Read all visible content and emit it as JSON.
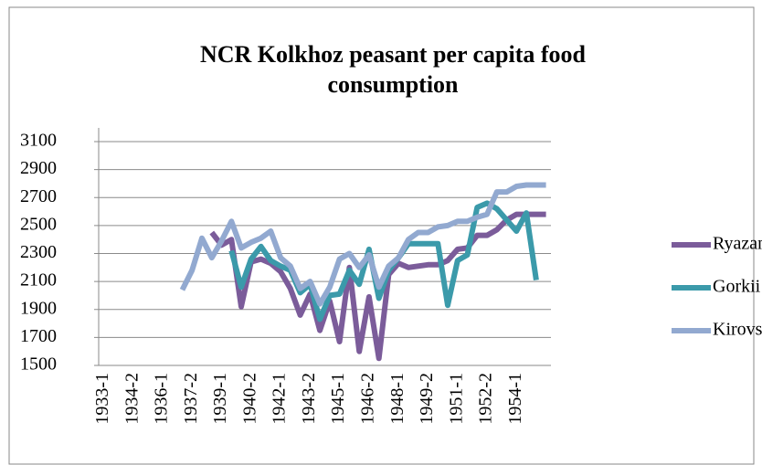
{
  "chart_data": {
    "type": "line",
    "title": "NCR Kolkhoz peasant per capita food consumption",
    "categories": [
      "1933-1",
      null,
      null,
      "1934-2",
      null,
      null,
      "1936-1",
      null,
      null,
      "1937-2",
      null,
      null,
      "1939-1",
      null,
      null,
      "1940-2",
      null,
      null,
      "1942-1",
      null,
      null,
      "1943-2",
      null,
      null,
      "1945-1",
      null,
      null,
      "1946-2",
      null,
      null,
      "1948-1",
      null,
      null,
      "1949-2",
      null,
      null,
      "1951-1",
      null,
      null,
      "1952-2",
      null,
      null,
      "1954-1",
      null,
      null,
      null
    ],
    "series": [
      {
        "name": "Ryazan Ob",
        "color": "#7b5c9a",
        "values": [
          null,
          null,
          null,
          null,
          null,
          null,
          null,
          null,
          null,
          null,
          null,
          2450,
          2360,
          2400,
          1920,
          2240,
          2260,
          2230,
          2170,
          2050,
          1860,
          2010,
          1750,
          1960,
          1670,
          2200,
          1600,
          1990,
          1550,
          2150,
          2230,
          2200,
          2210,
          2220,
          2220,
          2250,
          2330,
          2340,
          2430,
          2430,
          2470,
          2540,
          2580,
          2580,
          2580,
          2580
        ]
      },
      {
        "name": "Gorkii Ob",
        "color": "#3b9aaa",
        "values": [
          null,
          null,
          null,
          null,
          null,
          null,
          null,
          null,
          null,
          null,
          null,
          null,
          null,
          2320,
          2060,
          2260,
          2350,
          2250,
          2210,
          2180,
          2020,
          2080,
          1830,
          2000,
          2010,
          2180,
          2080,
          2330,
          1980,
          2180,
          2270,
          2370,
          2370,
          2370,
          2370,
          1930,
          2250,
          2290,
          2630,
          2660,
          2620,
          2540,
          2460,
          2590,
          2110,
          null
        ]
      },
      {
        "name": "Kirovsk",
        "color": "#92a9d0",
        "values": [
          null,
          null,
          null,
          null,
          null,
          null,
          null,
          null,
          2040,
          2180,
          2410,
          2270,
          2390,
          2530,
          2340,
          2380,
          2410,
          2460,
          2270,
          2210,
          2050,
          2100,
          1940,
          2060,
          2260,
          2300,
          2200,
          2290,
          2060,
          2210,
          2270,
          2400,
          2450,
          2450,
          2490,
          2500,
          2530,
          2530,
          2560,
          2580,
          2740,
          2740,
          2780,
          2790,
          2790,
          2790
        ]
      }
    ],
    "ylim": [
      1500,
      3100
    ],
    "yticks": [
      1500,
      1700,
      1900,
      2100,
      2300,
      2500,
      2700,
      2900,
      3100
    ],
    "grid": true,
    "legend": "right"
  }
}
